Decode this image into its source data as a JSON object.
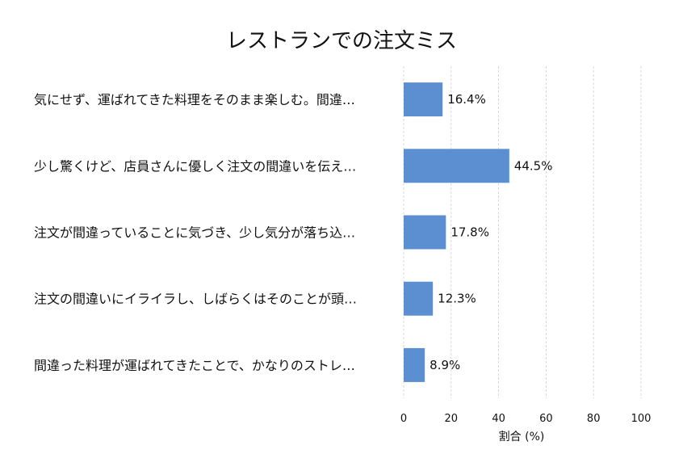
{
  "chart_data": {
    "type": "bar",
    "orientation": "horizontal",
    "title": "レストランでの注文ミス",
    "xlabel": "割合 (%)",
    "ylabel": "",
    "xlim": [
      0,
      100
    ],
    "xticks": [
      0,
      20,
      40,
      60,
      80,
      100
    ],
    "grid": "x-dashed",
    "color": "#5b8fd1",
    "categories": [
      "気にせず、運ばれてきた料理をそのまま楽しむ。間違…",
      "少し驚くけど、店員さんに優しく注文の間違いを伝え…",
      "注文が間違っていることに気づき、少し気分が落ち込…",
      "注文の間違いにイライラし、しばらくはそのことが頭…",
      "間違った料理が運ばれてきたことで、かなりのストレ…"
    ],
    "values": [
      16.4,
      44.5,
      17.8,
      12.3,
      8.9
    ],
    "value_labels": [
      "16.4%",
      "44.5%",
      "17.8%",
      "12.3%",
      "8.9%"
    ]
  }
}
